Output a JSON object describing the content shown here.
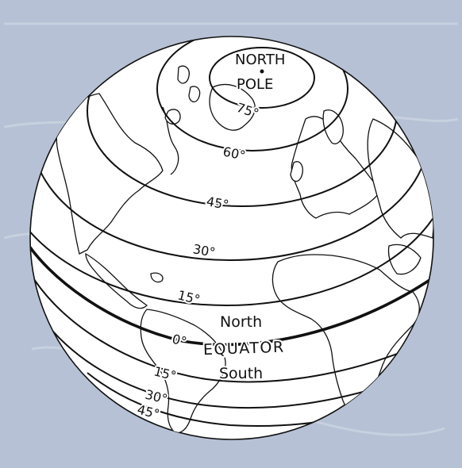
{
  "labels": {
    "north_pole_line1": "NORTH",
    "north_pole_line2": "POLE",
    "equator": "EQUATOR",
    "north": "North",
    "south": "South"
  },
  "latitudes": {
    "n75": "75°",
    "n60": "60°",
    "n45": "45°",
    "n30": "30°",
    "n15": "15°",
    "eq": "0°",
    "s15": "15°",
    "s30": "30°",
    "s45": "45°"
  },
  "colors": {
    "background": "#b6c1d5",
    "globe": "#ffffff",
    "lines": "#111111"
  }
}
